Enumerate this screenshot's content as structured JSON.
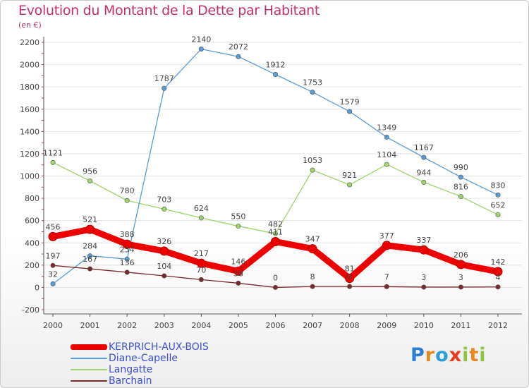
{
  "chart_data": {
    "type": "line",
    "title": "Evolution du Montant de la Dette par Habitant",
    "unit_label": "(en €)",
    "xlabel": "",
    "ylabel": "",
    "ylim": [
      -200,
      2200
    ],
    "y_ticks": [
      -200,
      0,
      200,
      400,
      600,
      800,
      1000,
      1200,
      1400,
      1600,
      1800,
      2000,
      2200
    ],
    "categories": [
      "2000",
      "2001",
      "2002",
      "2003",
      "2004",
      "2005",
      "2006",
      "2007",
      "2008",
      "2009",
      "2010",
      "2011",
      "2012"
    ],
    "grid": "horizontal",
    "legend_position": "bottom-left",
    "series": [
      {
        "name": "KERPRICH-AUX-BOIS",
        "color": "#ee0000",
        "values": [
          456,
          521,
          388,
          326,
          217,
          146,
          411,
          347,
          81,
          377,
          337,
          206,
          142
        ]
      },
      {
        "name": "Diane-Capelle",
        "color": "#5b9bd5",
        "values": [
          32,
          284,
          254,
          1787,
          2140,
          2072,
          1912,
          1753,
          1579,
          1349,
          1167,
          990,
          830
        ]
      },
      {
        "name": "Langatte",
        "color": "#9ed46a",
        "values": [
          1121,
          956,
          780,
          703,
          624,
          550,
          482,
          1053,
          921,
          1104,
          944,
          816,
          652
        ]
      },
      {
        "name": "Barchain",
        "color": "#7a2a2a",
        "values": [
          197,
          167,
          136,
          104,
          70,
          38,
          0,
          8,
          8,
          7,
          3,
          3,
          4
        ]
      }
    ]
  },
  "logo": {
    "letters": [
      "P",
      "r",
      "o",
      "x",
      "i",
      "t",
      "i"
    ],
    "colors": [
      "#2d7fd0",
      "#e8871e",
      "#2d9fd8",
      "#e83a1e",
      "#8cc63f",
      "#e8871e",
      "#8cc63f"
    ]
  }
}
